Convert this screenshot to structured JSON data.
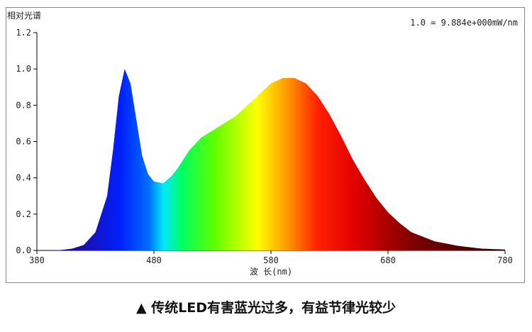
{
  "chart_data": {
    "type": "area",
    "y_label": "相对光谱",
    "x_label": "波 长(nm)",
    "annotation": "1.0 = 9.884e+000mW/nm",
    "x": [
      380,
      390,
      400,
      410,
      420,
      430,
      440,
      445,
      450,
      455,
      460,
      465,
      470,
      475,
      480,
      488,
      495,
      500,
      510,
      520,
      530,
      540,
      550,
      560,
      570,
      580,
      590,
      600,
      610,
      620,
      630,
      640,
      650,
      660,
      670,
      680,
      690,
      700,
      720,
      740,
      760,
      780
    ],
    "values": [
      0,
      0,
      0.002,
      0.01,
      0.03,
      0.1,
      0.3,
      0.55,
      0.85,
      1.0,
      0.92,
      0.72,
      0.52,
      0.42,
      0.38,
      0.37,
      0.41,
      0.45,
      0.55,
      0.62,
      0.66,
      0.7,
      0.74,
      0.8,
      0.86,
      0.92,
      0.95,
      0.95,
      0.92,
      0.85,
      0.75,
      0.63,
      0.5,
      0.39,
      0.29,
      0.21,
      0.15,
      0.1,
      0.05,
      0.025,
      0.01,
      0.005
    ],
    "xlim": [
      380,
      780
    ],
    "xticks": [
      380,
      480,
      580,
      680,
      780
    ],
    "ylim": [
      0,
      1.2
    ],
    "yticks": [
      {
        "value": 0,
        "label": "0.0"
      },
      0.2,
      0.4,
      0.6,
      0.8,
      {
        "value": 1,
        "label": "1.0"
      },
      1.2
    ]
  },
  "caption": "▲ 传统LED有害蓝光过多，有益节律光较少"
}
